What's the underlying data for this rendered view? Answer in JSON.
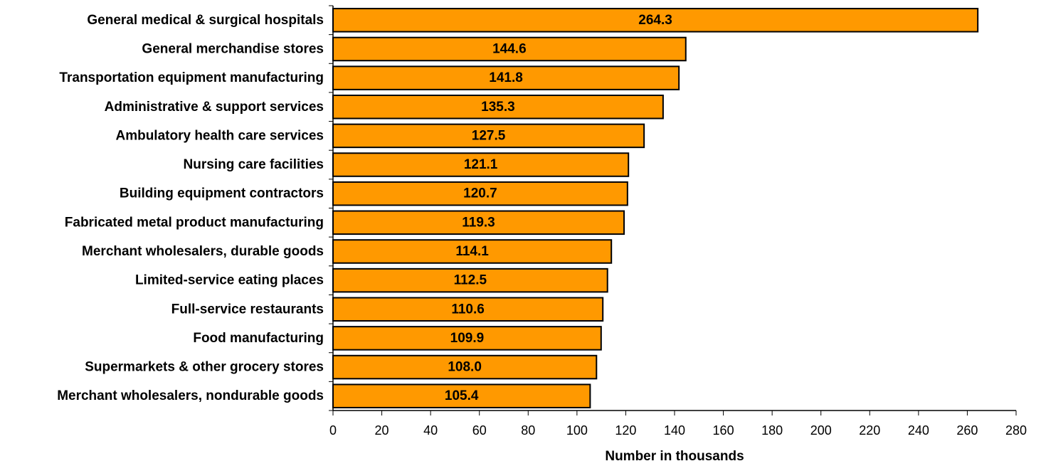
{
  "chart_data": {
    "type": "bar",
    "orientation": "horizontal",
    "categories": [
      "General medical & surgical hospitals",
      "General merchandise stores",
      "Transportation equipment manufacturing",
      "Administrative & support services",
      "Ambulatory health care services",
      "Nursing care facilities",
      "Building equipment contractors",
      "Fabricated metal product manufacturing",
      "Merchant wholesalers, durable goods",
      "Limited-service eating places",
      "Full-service restaurants",
      "Food manufacturing",
      "Supermarkets & other grocery stores",
      "Merchant wholesalers, nondurable goods"
    ],
    "values": [
      264.3,
      144.6,
      141.8,
      135.3,
      127.5,
      121.1,
      120.7,
      119.3,
      114.1,
      112.5,
      110.6,
      109.9,
      108.0,
      105.4
    ],
    "value_labels": [
      "264.3",
      "144.6",
      "141.8",
      "135.3",
      "127.5",
      "121.1",
      "120.7",
      "119.3",
      "114.1",
      "112.5",
      "110.6",
      "109.9",
      "108.0",
      "105.4"
    ],
    "title": "",
    "xlabel": "Number in thousands",
    "ylabel": "",
    "xlim": [
      0,
      280
    ],
    "xticks": [
      "0",
      "20",
      "40",
      "60",
      "80",
      "100",
      "120",
      "140",
      "160",
      "180",
      "200",
      "220",
      "240",
      "260",
      "280"
    ],
    "grid": false,
    "legend": "none",
    "bar_color": "#FF9900",
    "bar_edge_color": "#000000"
  }
}
